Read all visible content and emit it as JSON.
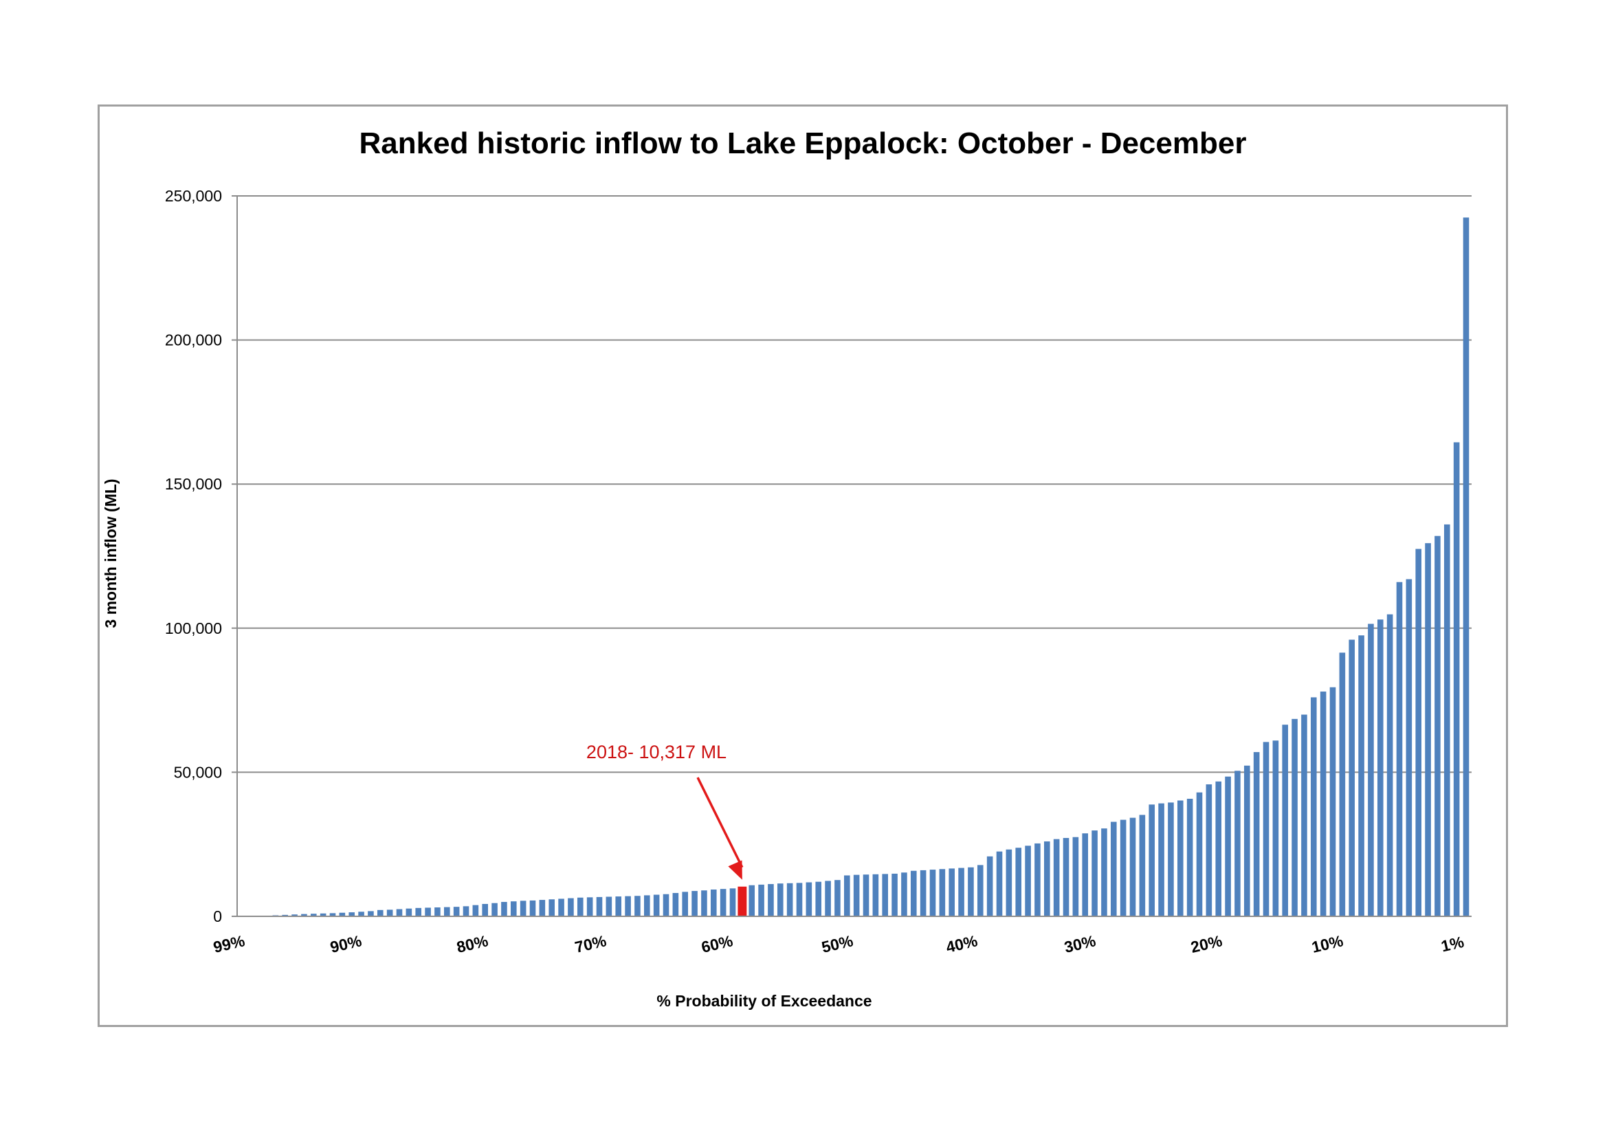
{
  "chart_data": {
    "type": "bar",
    "title": "Ranked historic inflow to Lake Eppalock: October - December",
    "xlabel": "% Probability of Exceedance",
    "ylabel": "3 month inflow (ML)",
    "ylim": [
      0,
      250000
    ],
    "yticks": [
      0,
      50000,
      100000,
      150000,
      200000,
      250000
    ],
    "ytick_labels": [
      "0",
      "50,000",
      "100,000",
      "150,000",
      "200,000",
      "250,000"
    ],
    "xtick_labels": [
      "99%",
      "90%",
      "80%",
      "70%",
      "60%",
      "50%",
      "40%",
      "30%",
      "20%",
      "10%",
      "1%"
    ],
    "grid": "horizontal",
    "bar_color": "#4f81bd",
    "highlight_color": "#e31b1b",
    "highlight_index": 50,
    "annotation": {
      "text": "2018- 10,317 ML",
      "color": "#cc1111"
    },
    "values": [
      200,
      350,
      500,
      650,
      800,
      900,
      1000,
      1100,
      1250,
      1400,
      1600,
      1800,
      2200,
      2300,
      2500,
      2700,
      2900,
      3000,
      3100,
      3200,
      3300,
      3500,
      3900,
      4300,
      4600,
      5000,
      5200,
      5400,
      5500,
      5700,
      5900,
      6100,
      6300,
      6500,
      6600,
      6700,
      6800,
      6900,
      7000,
      7100,
      7300,
      7500,
      7700,
      8100,
      8500,
      8800,
      9000,
      9300,
      9500,
      9700,
      10317,
      10800,
      11000,
      11200,
      11400,
      11500,
      11600,
      11800,
      12000,
      12300,
      12600,
      14200,
      14400,
      14500,
      14600,
      14700,
      14800,
      15200,
      15800,
      16000,
      16200,
      16400,
      16600,
      16800,
      17000,
      17800,
      20800,
      22500,
      23200,
      23800,
      24500,
      25300,
      26000,
      26800,
      27200,
      27500,
      28800,
      29800,
      30500,
      32800,
      33500,
      34200,
      35200,
      38800,
      39200,
      39500,
      40200,
      40800,
      43000,
      45800,
      46800,
      48500,
      50500,
      52300,
      57000,
      60500,
      61000,
      66500,
      68500,
      70000,
      76000,
      78000,
      79500,
      91500,
      96000,
      97500,
      101500,
      103000,
      104800,
      116000,
      117000,
      127500,
      129500,
      132000,
      136000,
      164500,
      242500
    ]
  }
}
